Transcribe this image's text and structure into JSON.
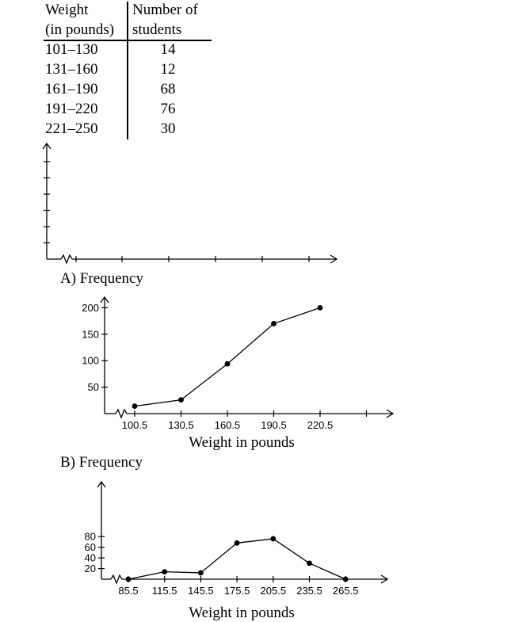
{
  "table": {
    "header_col1_line1": "Weight",
    "header_col1_line2": "(in pounds)",
    "header_col2_line1": "Number of",
    "header_col2_line2": "students",
    "rows": [
      {
        "range": "101–130",
        "count": "14"
      },
      {
        "range": "131–160",
        "count": "12"
      },
      {
        "range": "161–190",
        "count": "68"
      },
      {
        "range": "191–220",
        "count": "76"
      },
      {
        "range": "221–250",
        "count": "30"
      }
    ]
  },
  "options": {
    "a_label": "A) Frequency",
    "b_label": "B) Frequency"
  },
  "chart_data": [
    {
      "type": "axes",
      "title": "",
      "xlabel": "",
      "ylabel": "",
      "y_ticks": 6,
      "x_ticks": 6
    },
    {
      "type": "line",
      "title": "",
      "ylabel": "Frequency",
      "xlabel": "Weight in pounds",
      "x": [
        100.5,
        130.5,
        160.5,
        190.5,
        220.5
      ],
      "y": [
        14,
        26,
        94,
        170,
        200
      ],
      "x_tick_labels": [
        "100.5",
        "130.5",
        "160.5",
        "190.5",
        "220.5"
      ],
      "y_tick_labels": [
        "50",
        "100",
        "150",
        "200"
      ],
      "y_ticks": [
        50,
        100,
        150,
        200
      ],
      "ylim": [
        0,
        220
      ]
    },
    {
      "type": "line",
      "title": "",
      "ylabel": "Frequency",
      "xlabel": "Weight in pounds",
      "x": [
        85.5,
        115.5,
        145.5,
        175.5,
        205.5,
        235.5,
        265.5
      ],
      "y": [
        0,
        14,
        12,
        68,
        76,
        30,
        0
      ],
      "x_tick_labels": [
        "85.5",
        "115.5",
        "145.5",
        "175.5",
        "205.5",
        "235.5",
        "265.5"
      ],
      "y_tick_labels": [
        "20",
        "40",
        "60",
        "80"
      ],
      "y_ticks": [
        20,
        40,
        60,
        80
      ],
      "ylim": [
        0,
        90
      ]
    }
  ]
}
